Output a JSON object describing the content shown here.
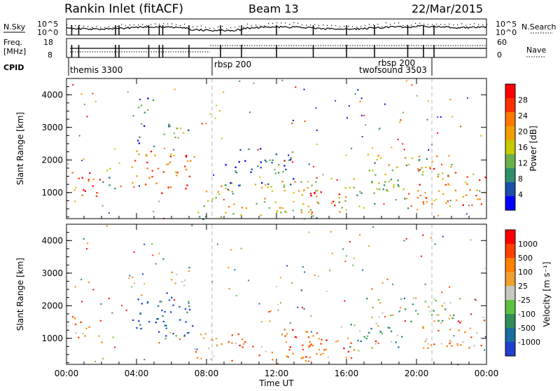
{
  "header": {
    "title": "Rankin Inlet (fitACF)",
    "beam": "Beam 13",
    "date": "22/Mar/2015"
  },
  "param_panel": {
    "nsky_label": "N.Sky",
    "nsearch_label": "N.Search",
    "nsky_ticks": [
      "10^5",
      "10^0"
    ],
    "nsearch_ticks": [
      "10^5",
      "10^0"
    ],
    "freq_label_1": "Freq.",
    "freq_label_2": "[MHz]",
    "freq_ticks": [
      "18",
      "8"
    ],
    "nave_label": "Nave",
    "nave_ticks": [
      "60",
      "0"
    ],
    "cpid_label": "CPID",
    "cpid_modes": [
      {
        "label": "themis 3300",
        "start": "00:16"
      },
      {
        "label": "rbsp 200",
        "start": "08:50"
      },
      {
        "label": "rbsp 200",
        "start": "21:10"
      },
      {
        "label": "twofsound 3503",
        "start": "21:10"
      }
    ]
  },
  "chart_data": [
    {
      "type": "heatmap",
      "name": "power",
      "xlabel": "Time UT",
      "ylabel": "Slant Range [km]",
      "x_ticks": [
        "00:00",
        "04:00",
        "08:00",
        "12:00",
        "16:00",
        "20:00",
        "00:00"
      ],
      "xlim_hours": [
        0,
        24
      ],
      "ylim": [
        200,
        4500
      ],
      "y_ticks": [
        1000,
        2000,
        3000,
        4000
      ],
      "colorbar_label": "Power [dB]",
      "colorbar_ticks": [
        "28",
        "24",
        "20",
        "16",
        "12",
        "8",
        "4"
      ],
      "colorbar_colors": [
        "#0000ff",
        "#1b4fa8",
        "#2f8f6a",
        "#6ab04c",
        "#c8c800",
        "#f0a000",
        "#ff7800",
        "#ff3000",
        "#ff0000"
      ],
      "regions": [
        {
          "t": [
            0.3,
            2.0
          ],
          "r": [
            800,
            1700
          ],
          "level": 0.85
        },
        {
          "t": [
            2.0,
            2.8
          ],
          "r": [
            1100,
            2000
          ],
          "level": 0.3
        },
        {
          "t": [
            3.7,
            7.2
          ],
          "r": [
            1000,
            2300
          ],
          "level": 0.75
        },
        {
          "t": [
            5.5,
            7.0
          ],
          "r": [
            2600,
            3300
          ],
          "level": 0.35
        },
        {
          "t": [
            4.0,
            5.0
          ],
          "r": [
            2400,
            4000
          ],
          "level": 0.2
        },
        {
          "t": [
            7.3,
            8.8
          ],
          "r": [
            200,
            1200
          ],
          "level": 0.4
        },
        {
          "t": [
            8.8,
            14.5
          ],
          "r": [
            300,
            1400
          ],
          "level": 0.55
        },
        {
          "t": [
            13.5,
            16.0
          ],
          "r": [
            400,
            1100
          ],
          "level": 0.85
        },
        {
          "t": [
            15.0,
            19.5
          ],
          "r": [
            500,
            1600
          ],
          "level": 0.45
        },
        {
          "t": [
            17.0,
            22.0
          ],
          "r": [
            1500,
            2200
          ],
          "level": 0.55
        },
        {
          "t": [
            20.0,
            24.0
          ],
          "r": [
            600,
            1800
          ],
          "level": 0.7
        },
        {
          "t": [
            9.0,
            13.0
          ],
          "r": [
            1200,
            2400
          ],
          "level": 0.25
        }
      ]
    },
    {
      "type": "heatmap",
      "name": "velocity",
      "xlabel": "Time UT",
      "ylabel": "Slant Range [km]",
      "x_ticks": [
        "00:00",
        "04:00",
        "08:00",
        "12:00",
        "16:00",
        "20:00",
        "00:00"
      ],
      "xlim_hours": [
        0,
        24
      ],
      "ylim": [
        200,
        4500
      ],
      "y_ticks": [
        1000,
        2000,
        3000,
        4000
      ],
      "colorbar_label": "Velocity [m s⁻¹]",
      "colorbar_ticks": [
        "1000",
        "500",
        "100",
        "25",
        "-25",
        "-100",
        "-500",
        "-1000"
      ],
      "colorbar_colors": [
        "#2040d0",
        "#1a6ea0",
        "#2f8f5a",
        "#60c040",
        "#c8c8c0",
        "#f0a030",
        "#ff8000",
        "#ff4000",
        "#ff0000"
      ],
      "regions": [
        {
          "t": [
            0.3,
            2.0
          ],
          "r": [
            800,
            1700
          ],
          "level": 0.65
        },
        {
          "t": [
            3.7,
            6.0
          ],
          "r": [
            1300,
            2500
          ],
          "level": 0.05
        },
        {
          "t": [
            5.0,
            7.2
          ],
          "r": [
            1000,
            2200
          ],
          "level": 0.2
        },
        {
          "t": [
            5.5,
            7.0
          ],
          "r": [
            2600,
            3300
          ],
          "level": 0.45
        },
        {
          "t": [
            7.3,
            8.8
          ],
          "r": [
            200,
            1200
          ],
          "level": 0.65
        },
        {
          "t": [
            8.8,
            14.5
          ],
          "r": [
            300,
            1300
          ],
          "level": 0.7
        },
        {
          "t": [
            13.5,
            16.5
          ],
          "r": [
            400,
            1100
          ],
          "level": 0.75
        },
        {
          "t": [
            15.5,
            19.5
          ],
          "r": [
            700,
            1500
          ],
          "level": 0.35
        },
        {
          "t": [
            17.0,
            22.5
          ],
          "r": [
            1500,
            2300
          ],
          "level": 0.45
        },
        {
          "t": [
            20.0,
            24.0
          ],
          "r": [
            700,
            1700
          ],
          "level": 0.7
        }
      ]
    }
  ]
}
